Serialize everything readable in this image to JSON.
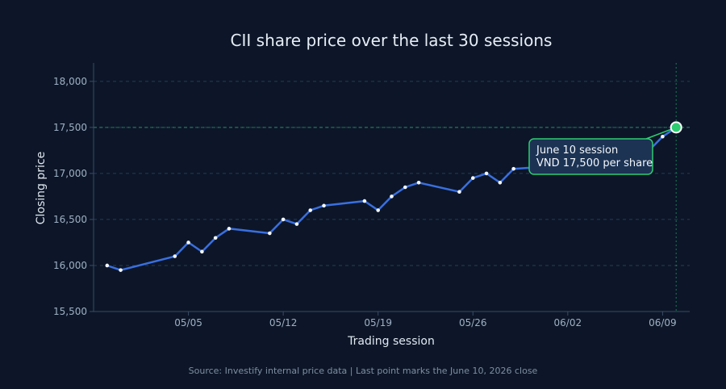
{
  "chart_data": {
    "type": "line",
    "title": "CII share price over the last 30 sessions",
    "xlabel": "Trading session",
    "ylabel": "Closing price",
    "source": "Source: Investify internal price data | Last point marks the June 10, 2026 close",
    "ylim": [
      15500,
      18200
    ],
    "y_ticks": [
      15500,
      16000,
      16500,
      17000,
      17500,
      18000
    ],
    "y_tick_labels": [
      "15,500",
      "16,000",
      "16,500",
      "17,000",
      "17,500",
      "18,000"
    ],
    "x_ticks": [
      "2026-05-05",
      "2026-05-12",
      "2026-05-19",
      "2026-05-26",
      "2026-06-02",
      "2026-06-09"
    ],
    "x_tick_labels": [
      "05/05",
      "05/12",
      "05/19",
      "05/26",
      "06/02",
      "06/09"
    ],
    "xlim": [
      "2026-04-28",
      "2026-06-11"
    ],
    "grid": true,
    "reference_line": {
      "y": 17500
    },
    "series": [
      {
        "color": "#3a6fe0",
        "x": [
          "2026-04-29",
          "2026-04-30",
          "2026-05-04",
          "2026-05-05",
          "2026-05-06",
          "2026-05-07",
          "2026-05-08",
          "2026-05-11",
          "2026-05-12",
          "2026-05-13",
          "2026-05-14",
          "2026-05-15",
          "2026-05-18",
          "2026-05-19",
          "2026-05-20",
          "2026-05-21",
          "2026-05-22",
          "2026-05-25",
          "2026-05-26",
          "2026-05-27",
          "2026-05-28",
          "2026-05-29",
          "2026-06-01",
          "2026-06-02",
          "2026-06-03",
          "2026-06-04",
          "2026-06-05",
          "2026-06-08",
          "2026-06-09",
          "2026-06-10"
        ],
        "y": [
          16000,
          15950,
          16100,
          16250,
          16150,
          16300,
          16400,
          16350,
          16500,
          16450,
          16600,
          16650,
          16700,
          16600,
          16750,
          16850,
          16900,
          16800,
          16950,
          17000,
          16900,
          17050,
          17080,
          17120,
          17150,
          17180,
          17200,
          17250,
          17400,
          17500
        ]
      }
    ],
    "annotation": {
      "x": "2026-06-10",
      "y": 17500,
      "lines": [
        "June 10 session",
        "VND 17,500 per share"
      ],
      "color": "#2ecc71"
    }
  }
}
